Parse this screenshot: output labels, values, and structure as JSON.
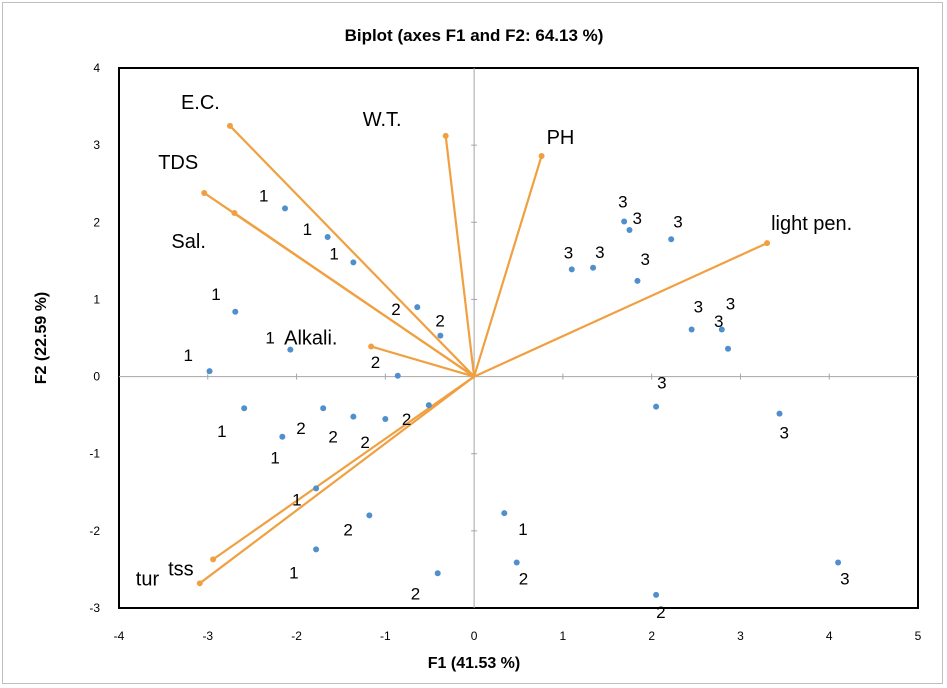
{
  "chart_data": {
    "type": "scatter",
    "title": "Biplot (axes F1 and F2: 64.13 %)",
    "xlabel": "F1 (41.53 %)",
    "ylabel": "F2 (22.59 %)",
    "xlim": [
      -4,
      5
    ],
    "ylim": [
      -3,
      4
    ],
    "xticks": [
      "-4",
      "-3",
      "-2",
      "-1",
      "0",
      "1",
      "2",
      "3",
      "4",
      "5"
    ],
    "yticks": [
      "-3",
      "-2",
      "-1",
      "0",
      "1",
      "2",
      "3",
      "4"
    ],
    "grid": false,
    "colors": {
      "points": "#4f8fcc",
      "vectors": "#f0a040",
      "axes": "#a6a6a6",
      "frame": "#000000"
    },
    "observations": [
      {
        "label": "1",
        "x": -2.13,
        "y": 2.18
      },
      {
        "label": "1",
        "x": -1.65,
        "y": 1.81
      },
      {
        "label": "1",
        "x": -1.36,
        "y": 1.48
      },
      {
        "label": "1",
        "x": -2.69,
        "y": 0.84
      },
      {
        "label": "1",
        "x": -2.07,
        "y": 0.35
      },
      {
        "label": "1",
        "x": -2.98,
        "y": 0.07
      },
      {
        "label": "1",
        "x": -2.59,
        "y": -0.41
      },
      {
        "label": "1",
        "x": -2.16,
        "y": -0.78
      },
      {
        "label": "1",
        "x": -1.78,
        "y": -1.45
      },
      {
        "label": "1",
        "x": -1.78,
        "y": -2.24
      },
      {
        "label": "1",
        "x": 0.34,
        "y": -1.77
      },
      {
        "label": "2",
        "x": -0.64,
        "y": 0.9
      },
      {
        "label": "2",
        "x": -0.38,
        "y": 0.53
      },
      {
        "label": "2",
        "x": -0.86,
        "y": 0.01
      },
      {
        "label": "2",
        "x": -1.7,
        "y": -0.41
      },
      {
        "label": "2",
        "x": -1.36,
        "y": -0.52
      },
      {
        "label": "2",
        "x": -1.0,
        "y": -0.55
      },
      {
        "label": "2",
        "x": -0.51,
        "y": -0.37
      },
      {
        "label": "2",
        "x": -1.18,
        "y": -1.8
      },
      {
        "label": "2",
        "x": -0.41,
        "y": -2.55
      },
      {
        "label": "2",
        "x": 0.48,
        "y": -2.41
      },
      {
        "label": "2",
        "x": 2.05,
        "y": -2.83
      },
      {
        "label": "3",
        "x": 1.1,
        "y": 1.39
      },
      {
        "label": "3",
        "x": 1.34,
        "y": 1.41
      },
      {
        "label": "3",
        "x": 1.69,
        "y": 2.01
      },
      {
        "label": "3",
        "x": 1.75,
        "y": 1.9
      },
      {
        "label": "3",
        "x": 2.22,
        "y": 1.78
      },
      {
        "label": "3",
        "x": 1.84,
        "y": 1.24
      },
      {
        "label": "3",
        "x": 2.45,
        "y": 0.61
      },
      {
        "label": "3",
        "x": 2.79,
        "y": 0.61
      },
      {
        "label": "3",
        "x": 2.86,
        "y": 0.36
      },
      {
        "label": "3",
        "x": 2.05,
        "y": -0.39
      },
      {
        "label": "3",
        "x": 3.44,
        "y": -0.48
      },
      {
        "label": "3",
        "x": 4.1,
        "y": -2.41
      }
    ],
    "variables": [
      {
        "name": "E.C.",
        "x": -2.75,
        "y": 3.25
      },
      {
        "name": "W.T.",
        "x": -0.32,
        "y": 3.12
      },
      {
        "name": "PH",
        "x": 0.76,
        "y": 2.86
      },
      {
        "name": "TDS",
        "x": -3.04,
        "y": 2.38
      },
      {
        "name": "Sal.",
        "x": -2.7,
        "y": 2.12
      },
      {
        "name": "light pen.",
        "x": 3.3,
        "y": 1.73
      },
      {
        "name": "Alkali.",
        "x": -1.16,
        "y": 0.39
      },
      {
        "name": "tss",
        "x": -2.94,
        "y": -2.37
      },
      {
        "name": "tur",
        "x": -3.09,
        "y": -2.68
      }
    ]
  }
}
